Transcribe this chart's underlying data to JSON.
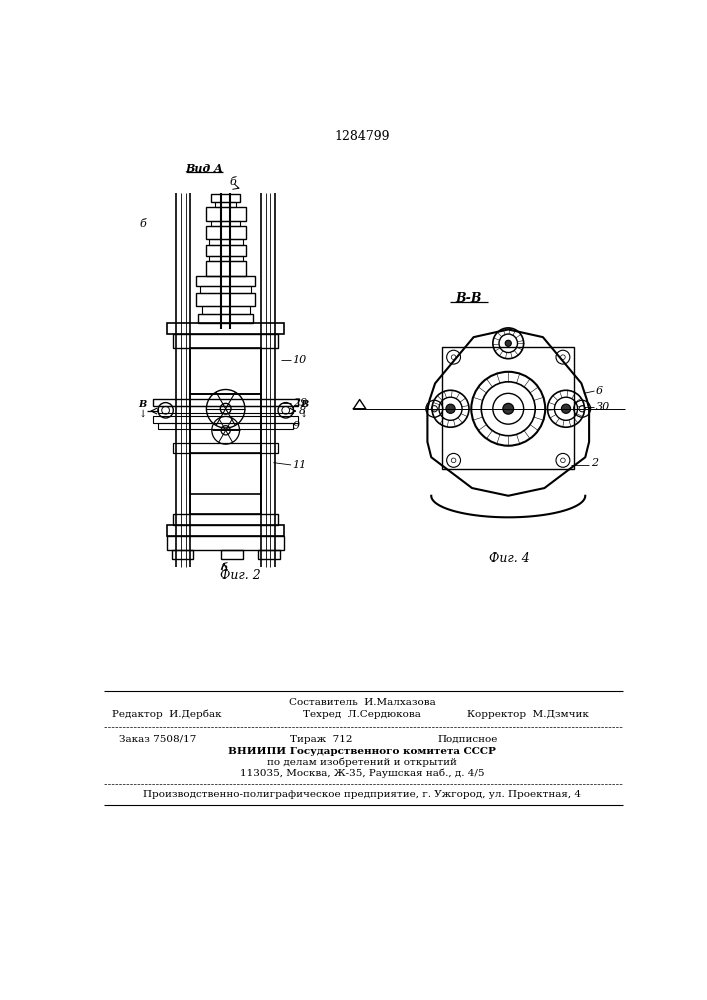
{
  "patent_number": "1284799",
  "background_color": "#ffffff",
  "line_color": "#000000",
  "fig_width": 7.07,
  "fig_height": 10.0,
  "label_vid_a": "Вид A",
  "label_fig2": "Фиг. 2",
  "label_fig4": "Фиг. 4",
  "footer_line1": "Составитель  И.Малхазова",
  "footer_line2_left": "Редактор  И.Дербак",
  "footer_line2_mid": "Техред  Л.Сердюкова",
  "footer_line2_right": "Корректор  М.Дзмчик",
  "footer_order": "Заказ 7508/17",
  "footer_tirazh": "Тираж  712",
  "footer_podp": "Подписное",
  "footer_vniipи": "ВНИИПИ Государственного комитета СССР",
  "footer_po_delam": "по делам изобретений и открытий",
  "footer_address": "113035, Москва, Ж-35, Раушская наб., д. 4/5",
  "footer_production": "Производственно-полиграфическое предприятие, г. Ужгород, ул. Проектная, 4"
}
